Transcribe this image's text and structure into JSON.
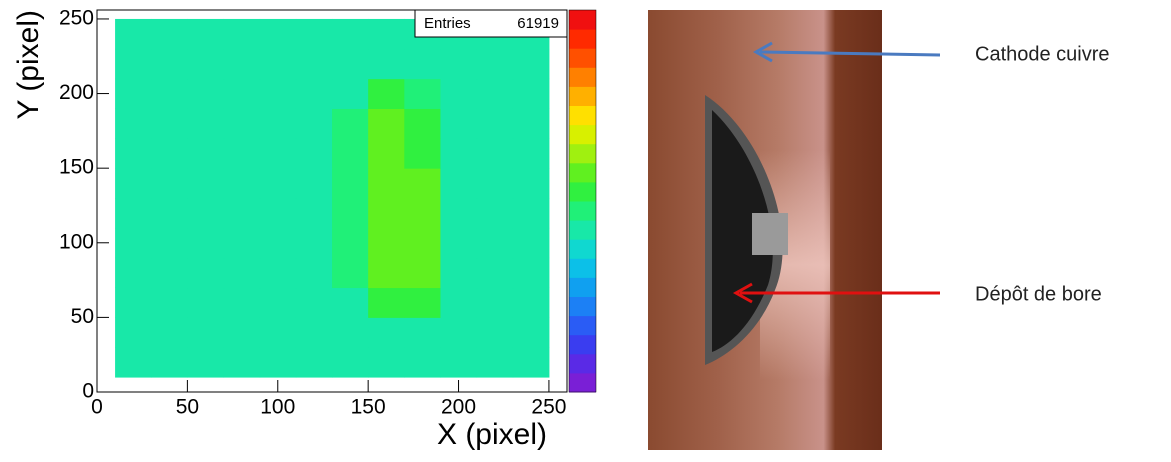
{
  "chart_data": {
    "type": "heatmap",
    "x_label": "X (pixel)",
    "y_label": "Y (pixel)",
    "stats": {
      "label": "Entries",
      "value": 61919
    },
    "xlim": [
      0,
      260
    ],
    "ylim": [
      0,
      256
    ],
    "xticks": [
      0,
      50,
      100,
      150,
      200,
      250
    ],
    "yticks": [
      0,
      50,
      100,
      150,
      200,
      250
    ],
    "xbins": [
      10,
      30,
      50,
      70,
      90,
      110,
      130,
      150,
      170,
      190,
      210,
      230,
      250
    ],
    "ybins": [
      10,
      30,
      50,
      70,
      90,
      110,
      130,
      150,
      170,
      190,
      210,
      230,
      250
    ],
    "zlim": [
      0,
      10
    ],
    "colorscale": [
      "#7a1fd6",
      "#5a2ae6",
      "#3a3df0",
      "#2a5cf5",
      "#1c80f5",
      "#10a0f0",
      "#0cc0e8",
      "#10d8d0",
      "#18e8a8",
      "#20f078",
      "#30f040",
      "#60f020",
      "#a0f010",
      "#d8f000",
      "#ffe000",
      "#ffb000",
      "#ff8000",
      "#ff5000",
      "#ff2a00",
      "#f01010"
    ],
    "z": [
      [
        4,
        4,
        4,
        4,
        4,
        4,
        4,
        4,
        4,
        4,
        4,
        4
      ],
      [
        4,
        4,
        4,
        4,
        4,
        4,
        4,
        4,
        4,
        4,
        4,
        4
      ],
      [
        4,
        4,
        4,
        4,
        4,
        4,
        4,
        5.3,
        5.3,
        4,
        4,
        4
      ],
      [
        4,
        4,
        4,
        4,
        4,
        4,
        4.5,
        5.5,
        5.5,
        4,
        4,
        4
      ],
      [
        4,
        4,
        4,
        4,
        4,
        4,
        4.5,
        5.5,
        5.5,
        4,
        4,
        4
      ],
      [
        4,
        4,
        4,
        4,
        4,
        4,
        4.5,
        5.5,
        5.5,
        4,
        4,
        4
      ],
      [
        4,
        4,
        4,
        4,
        4,
        4,
        4.5,
        5.5,
        5.5,
        4,
        4,
        4
      ],
      [
        4,
        4,
        4,
        4,
        4,
        4,
        4.5,
        5.5,
        5.3,
        4,
        4,
        4
      ],
      [
        4,
        4,
        4,
        4,
        4,
        4,
        4.5,
        5.5,
        5.3,
        4,
        4,
        4
      ],
      [
        4,
        4,
        4,
        4,
        4,
        4,
        4,
        5.3,
        4.5,
        4,
        4,
        4
      ],
      [
        4,
        4,
        4,
        4,
        4,
        4,
        4,
        4,
        4,
        4,
        4,
        4
      ],
      [
        4,
        4,
        4,
        4,
        4,
        4,
        4,
        4,
        4,
        4,
        4,
        4
      ]
    ]
  },
  "photo": {
    "annotations": [
      "Cathode cuivre",
      "Dépôt de bore"
    ]
  }
}
